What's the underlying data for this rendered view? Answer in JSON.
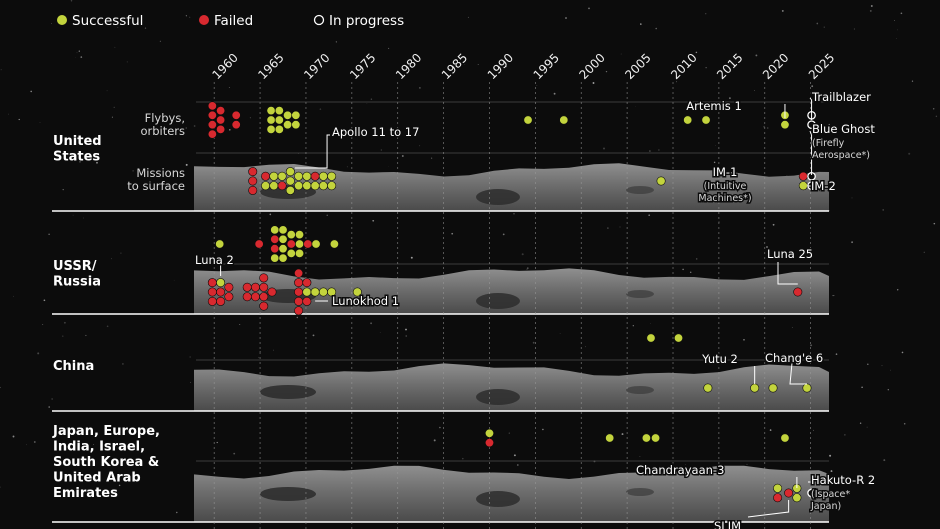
{
  "legend": {
    "success": "Successful",
    "failed": "Failed",
    "progress": "In progress"
  },
  "colors": {
    "success": "#c3d43d",
    "failed": "#d8292f",
    "progress_stroke": "#ffffff",
    "background": "#0c0c0c",
    "line": "#ffffff"
  },
  "chart_data": {
    "type": "scatter",
    "x_ticks": [
      1960,
      1965,
      1970,
      1975,
      1980,
      1985,
      1990,
      1995,
      2000,
      2005,
      2010,
      2015,
      2020,
      2025
    ],
    "xlim": [
      1957.8,
      2027
    ],
    "groups": [
      {
        "label": "United\nStates",
        "rows": [
          "Flybys,\norbiters",
          "Missions\nto surface"
        ]
      },
      {
        "label": "USSR/\nRussia",
        "rows": [
          "",
          ""
        ]
      },
      {
        "label": "China",
        "rows": [
          "",
          ""
        ]
      },
      {
        "label": "Japan, Europe,\nIndia, Israel,\nSouth Korea &\nUnited Arab\nEmirates",
        "rows": [
          "",
          ""
        ]
      }
    ],
    "annotations": [
      {
        "id": "apollo",
        "text": "Apollo 11 to 17"
      },
      {
        "id": "artemis",
        "text": "Artemis 1"
      },
      {
        "id": "trailblazer",
        "text": "Trailblazer"
      },
      {
        "id": "blueghost",
        "text": "Blue Ghost",
        "sub": "(Firefly\nAerospace*)"
      },
      {
        "id": "im1",
        "text": "IM-1",
        "sub": "(Intuitive\nMachines*)"
      },
      {
        "id": "im2",
        "text": "IM-2"
      },
      {
        "id": "luna2",
        "text": "Luna 2"
      },
      {
        "id": "luna25",
        "text": "Luna 25"
      },
      {
        "id": "lunokhod",
        "text": "Lunokhod 1"
      },
      {
        "id": "yutu",
        "text": "Yutu 2"
      },
      {
        "id": "change6",
        "text": "Chang'e 6"
      },
      {
        "id": "chandrayaan",
        "text": "Chandrayaan-3"
      },
      {
        "id": "hakuto",
        "text": "Hakuto-R 2",
        "sub": "(Ispace*\nJapan)"
      },
      {
        "id": "slim",
        "text": "SLIM"
      }
    ],
    "missions": [
      {
        "g": 0,
        "r": 0,
        "x": 1959.8,
        "s": "failed"
      },
      {
        "g": 0,
        "r": 0,
        "x": 1959.8,
        "s": "failed"
      },
      {
        "g": 0,
        "r": 0,
        "x": 1959.8,
        "s": "failed"
      },
      {
        "g": 0,
        "r": 0,
        "x": 1959.8,
        "s": "failed"
      },
      {
        "g": 0,
        "r": 0,
        "x": 1960.7,
        "s": "failed"
      },
      {
        "g": 0,
        "r": 0,
        "x": 1960.7,
        "s": "failed"
      },
      {
        "g": 0,
        "r": 0,
        "x": 1960.7,
        "s": "failed"
      },
      {
        "g": 0,
        "r": 0,
        "x": 1962.4,
        "s": "failed"
      },
      {
        "g": 0,
        "r": 0,
        "x": 1962.4,
        "s": "failed"
      },
      {
        "g": 0,
        "r": 0,
        "x": 1966.2,
        "s": "success"
      },
      {
        "g": 0,
        "r": 0,
        "x": 1966.2,
        "s": "success"
      },
      {
        "g": 0,
        "r": 0,
        "x": 1966.2,
        "s": "success"
      },
      {
        "g": 0,
        "r": 0,
        "x": 1967.1,
        "s": "success"
      },
      {
        "g": 0,
        "r": 0,
        "x": 1967.1,
        "s": "success"
      },
      {
        "g": 0,
        "r": 0,
        "x": 1967.1,
        "s": "success"
      },
      {
        "g": 0,
        "r": 0,
        "x": 1968.0,
        "s": "success"
      },
      {
        "g": 0,
        "r": 0,
        "x": 1968.0,
        "s": "success"
      },
      {
        "g": 0,
        "r": 0,
        "x": 1968.9,
        "s": "success"
      },
      {
        "g": 0,
        "r": 0,
        "x": 1968.9,
        "s": "success"
      },
      {
        "g": 0,
        "r": 0,
        "x": 1994.2,
        "s": "success"
      },
      {
        "g": 0,
        "r": 0,
        "x": 1998.1,
        "s": "success"
      },
      {
        "g": 0,
        "r": 0,
        "x": 2011.6,
        "s": "success"
      },
      {
        "g": 0,
        "r": 0,
        "x": 2013.6,
        "s": "success"
      },
      {
        "g": 0,
        "r": 0,
        "x": 2022.2,
        "s": "success"
      },
      {
        "g": 0,
        "r": 0,
        "x": 2022.2,
        "s": "success"
      },
      {
        "g": 0,
        "r": 0,
        "x": 2025.1,
        "s": "progress"
      },
      {
        "g": 0,
        "r": 0,
        "x": 2025.1,
        "s": "progress"
      },
      {
        "g": 0,
        "r": 1,
        "x": 1964.2,
        "s": "failed"
      },
      {
        "g": 0,
        "r": 1,
        "x": 1964.2,
        "s": "failed"
      },
      {
        "g": 0,
        "r": 1,
        "x": 1964.2,
        "s": "failed"
      },
      {
        "g": 0,
        "r": 1,
        "x": 1965.6,
        "s": "failed"
      },
      {
        "g": 0,
        "r": 1,
        "x": 1965.6,
        "s": "success"
      },
      {
        "g": 0,
        "r": 1,
        "x": 1966.5,
        "s": "success"
      },
      {
        "g": 0,
        "r": 1,
        "x": 1966.5,
        "s": "success"
      },
      {
        "g": 0,
        "r": 1,
        "x": 1967.4,
        "s": "success"
      },
      {
        "g": 0,
        "r": 1,
        "x": 1967.4,
        "s": "failed"
      },
      {
        "g": 0,
        "r": 1,
        "x": 1968.3,
        "s": "success"
      },
      {
        "g": 0,
        "r": 1,
        "x": 1968.3,
        "s": "success"
      },
      {
        "g": 0,
        "r": 1,
        "x": 1968.3,
        "s": "success"
      },
      {
        "g": 0,
        "r": 1,
        "x": 1969.2,
        "s": "success"
      },
      {
        "g": 0,
        "r": 1,
        "x": 1969.2,
        "s": "success"
      },
      {
        "g": 0,
        "r": 1,
        "x": 1970.1,
        "s": "success"
      },
      {
        "g": 0,
        "r": 1,
        "x": 1970.1,
        "s": "success"
      },
      {
        "g": 0,
        "r": 1,
        "x": 1971.0,
        "s": "failed"
      },
      {
        "g": 0,
        "r": 1,
        "x": 1971.0,
        "s": "success"
      },
      {
        "g": 0,
        "r": 1,
        "x": 1971.9,
        "s": "success"
      },
      {
        "g": 0,
        "r": 1,
        "x": 1971.9,
        "s": "success"
      },
      {
        "g": 0,
        "r": 1,
        "x": 1972.8,
        "s": "success"
      },
      {
        "g": 0,
        "r": 1,
        "x": 1972.8,
        "s": "success"
      },
      {
        "g": 0,
        "r": 1,
        "x": 2008.7,
        "s": "success"
      },
      {
        "g": 0,
        "r": 1,
        "x": 2024.2,
        "s": "failed"
      },
      {
        "g": 0,
        "r": 1,
        "x": 2024.2,
        "s": "success"
      },
      {
        "g": 0,
        "r": 1,
        "x": 2025.1,
        "s": "progress"
      },
      {
        "g": 0,
        "r": 1,
        "x": 2025.1,
        "s": "progress"
      },
      {
        "g": 1,
        "r": 0,
        "x": 1960.6,
        "s": "success"
      },
      {
        "g": 1,
        "r": 0,
        "x": 1964.9,
        "s": "failed"
      },
      {
        "g": 1,
        "r": 0,
        "x": 1966.6,
        "s": "success"
      },
      {
        "g": 1,
        "r": 0,
        "x": 1966.6,
        "s": "failed"
      },
      {
        "g": 1,
        "r": 0,
        "x": 1966.6,
        "s": "failed"
      },
      {
        "g": 1,
        "r": 0,
        "x": 1966.6,
        "s": "success"
      },
      {
        "g": 1,
        "r": 0,
        "x": 1967.5,
        "s": "success"
      },
      {
        "g": 1,
        "r": 0,
        "x": 1967.5,
        "s": "success"
      },
      {
        "g": 1,
        "r": 0,
        "x": 1967.5,
        "s": "success"
      },
      {
        "g": 1,
        "r": 0,
        "x": 1967.5,
        "s": "success"
      },
      {
        "g": 1,
        "r": 0,
        "x": 1968.4,
        "s": "success"
      },
      {
        "g": 1,
        "r": 0,
        "x": 1968.4,
        "s": "failed"
      },
      {
        "g": 1,
        "r": 0,
        "x": 1968.4,
        "s": "success"
      },
      {
        "g": 1,
        "r": 0,
        "x": 1969.3,
        "s": "success"
      },
      {
        "g": 1,
        "r": 0,
        "x": 1969.3,
        "s": "success"
      },
      {
        "g": 1,
        "r": 0,
        "x": 1969.3,
        "s": "success"
      },
      {
        "g": 1,
        "r": 0,
        "x": 1970.2,
        "s": "failed"
      },
      {
        "g": 1,
        "r": 0,
        "x": 1971.1,
        "s": "success"
      },
      {
        "g": 1,
        "r": 0,
        "x": 1973.1,
        "s": "success"
      },
      {
        "g": 1,
        "r": 1,
        "x": 1959.8,
        "s": "failed"
      },
      {
        "g": 1,
        "r": 1,
        "x": 1959.8,
        "s": "failed"
      },
      {
        "g": 1,
        "r": 1,
        "x": 1959.8,
        "s": "failed"
      },
      {
        "g": 1,
        "r": 1,
        "x": 1960.7,
        "s": "success"
      },
      {
        "g": 1,
        "r": 1,
        "x": 1960.7,
        "s": "failed"
      },
      {
        "g": 1,
        "r": 1,
        "x": 1960.7,
        "s": "failed"
      },
      {
        "g": 1,
        "r": 1,
        "x": 1961.6,
        "s": "failed"
      },
      {
        "g": 1,
        "r": 1,
        "x": 1961.6,
        "s": "failed"
      },
      {
        "g": 1,
        "r": 1,
        "x": 1963.6,
        "s": "failed"
      },
      {
        "g": 1,
        "r": 1,
        "x": 1963.6,
        "s": "failed"
      },
      {
        "g": 1,
        "r": 1,
        "x": 1964.5,
        "s": "failed"
      },
      {
        "g": 1,
        "r": 1,
        "x": 1964.5,
        "s": "failed"
      },
      {
        "g": 1,
        "r": 1,
        "x": 1965.4,
        "s": "failed"
      },
      {
        "g": 1,
        "r": 1,
        "x": 1965.4,
        "s": "failed"
      },
      {
        "g": 1,
        "r": 1,
        "x": 1965.4,
        "s": "failed"
      },
      {
        "g": 1,
        "r": 1,
        "x": 1965.4,
        "s": "failed"
      },
      {
        "g": 1,
        "r": 1,
        "x": 1966.3,
        "s": "failed"
      },
      {
        "g": 1,
        "r": 1,
        "x": 1969.2,
        "s": "failed"
      },
      {
        "g": 1,
        "r": 1,
        "x": 1969.2,
        "s": "failed"
      },
      {
        "g": 1,
        "r": 1,
        "x": 1969.2,
        "s": "failed"
      },
      {
        "g": 1,
        "r": 1,
        "x": 1969.2,
        "s": "failed"
      },
      {
        "g": 1,
        "r": 1,
        "x": 1969.2,
        "s": "failed"
      },
      {
        "g": 1,
        "r": 1,
        "x": 1970.1,
        "s": "failed"
      },
      {
        "g": 1,
        "r": 1,
        "x": 1970.1,
        "s": "success"
      },
      {
        "g": 1,
        "r": 1,
        "x": 1970.1,
        "s": "failed"
      },
      {
        "g": 1,
        "r": 1,
        "x": 1971.0,
        "s": "success"
      },
      {
        "g": 1,
        "r": 1,
        "x": 1971.9,
        "s": "success"
      },
      {
        "g": 1,
        "r": 1,
        "x": 1972.8,
        "s": "success"
      },
      {
        "g": 1,
        "r": 1,
        "x": 1975.6,
        "s": "success"
      },
      {
        "g": 1,
        "r": 1,
        "x": 2023.6,
        "s": "failed"
      },
      {
        "g": 2,
        "r": 0,
        "x": 2007.6,
        "s": "success"
      },
      {
        "g": 2,
        "r": 0,
        "x": 2010.6,
        "s": "success"
      },
      {
        "g": 2,
        "r": 1,
        "x": 2013.8,
        "s": "success"
      },
      {
        "g": 2,
        "r": 1,
        "x": 2018.9,
        "s": "success"
      },
      {
        "g": 2,
        "r": 1,
        "x": 2020.9,
        "s": "success"
      },
      {
        "g": 2,
        "r": 1,
        "x": 2024.6,
        "s": "success"
      },
      {
        "g": 3,
        "r": 0,
        "x": 1990.0,
        "s": "success"
      },
      {
        "g": 3,
        "r": 0,
        "x": 1990.0,
        "s": "failed"
      },
      {
        "g": 3,
        "r": 0,
        "x": 2003.1,
        "s": "success"
      },
      {
        "g": 3,
        "r": 0,
        "x": 2007.1,
        "s": "success"
      },
      {
        "g": 3,
        "r": 0,
        "x": 2008.1,
        "s": "success"
      },
      {
        "g": 3,
        "r": 0,
        "x": 2022.2,
        "s": "success"
      },
      {
        "g": 3,
        "r": 1,
        "x": 2021.4,
        "s": "success"
      },
      {
        "g": 3,
        "r": 1,
        "x": 2021.4,
        "s": "failed"
      },
      {
        "g": 3,
        "r": 1,
        "x": 2022.6,
        "s": "failed"
      },
      {
        "g": 3,
        "r": 1,
        "x": 2023.5,
        "s": "success"
      },
      {
        "g": 3,
        "r": 1,
        "x": 2023.5,
        "s": "success"
      },
      {
        "g": 3,
        "r": 1,
        "x": 2025.1,
        "s": "progress"
      }
    ]
  }
}
